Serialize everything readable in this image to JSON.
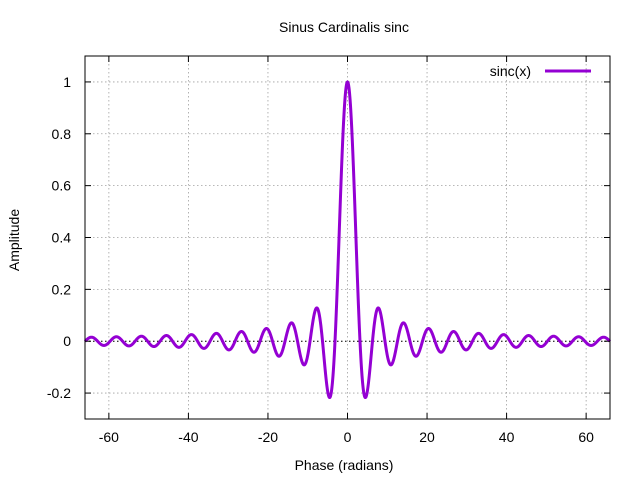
{
  "chart_data": {
    "type": "line",
    "title": "Sinus Cardinalis sinc",
    "xlabel": "Phase (radians)",
    "ylabel": "Amplitude",
    "xlim": [
      -66,
      66
    ],
    "ylim": [
      -0.3,
      1.1
    ],
    "x_ticks": [
      -60,
      -40,
      -20,
      0,
      20,
      40,
      60
    ],
    "y_ticks": [
      -0.2,
      0,
      0.2,
      0.4,
      0.6,
      0.8,
      1
    ],
    "x_tick_labels": [
      "-60",
      "-40",
      "-20",
      "0",
      "20",
      "40",
      "60"
    ],
    "y_tick_labels": [
      "-0.2",
      "0",
      "0.2",
      "0.4",
      "0.6",
      "0.8",
      "1"
    ],
    "grid": true,
    "zero_axis": true,
    "legend_position": "top-right",
    "series": [
      {
        "name": "sinc(x)",
        "function": "sin(x)/x",
        "color": "#9400d3",
        "x_range": [
          -66,
          66
        ]
      }
    ]
  }
}
